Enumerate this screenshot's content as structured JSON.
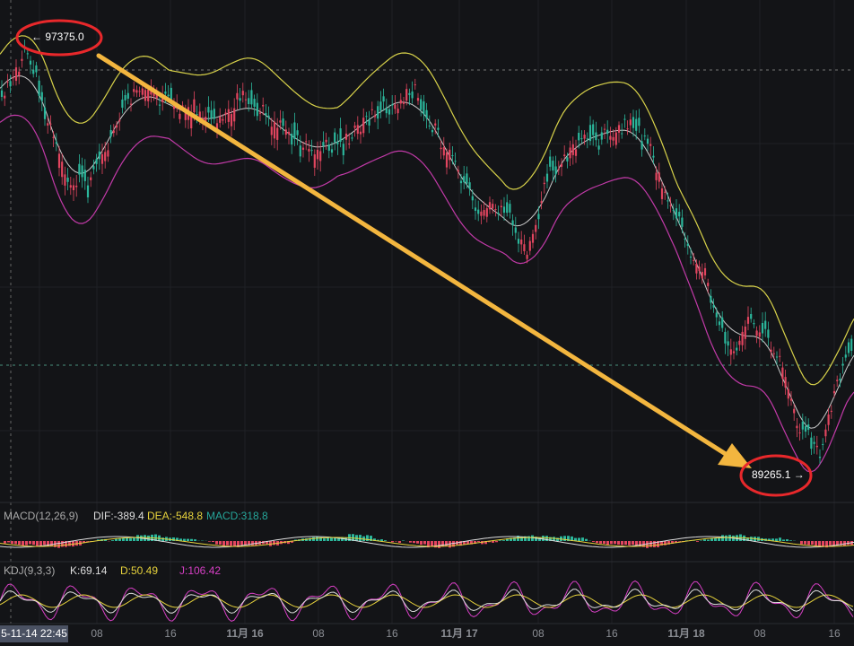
{
  "annotations": {
    "high": "← 97375.0",
    "low": "89265.1 →"
  },
  "macd": {
    "label": "MACD(12,26,9)",
    "dif": "DIF:-389.4",
    "dea": "DEA:-548.8",
    "macd": "MACD:318.8"
  },
  "kdj": {
    "label": "KDJ(9,3,3)",
    "k": "K:69.14",
    "d": "D:50.49",
    "j": "J:106.42"
  },
  "x_axis": {
    "labels": [
      "5-11-14 22:45",
      "08",
      "16",
      "11月 16",
      "08",
      "16",
      "11月 17",
      "08",
      "16",
      "11月 18",
      "08",
      "16"
    ]
  }
}
